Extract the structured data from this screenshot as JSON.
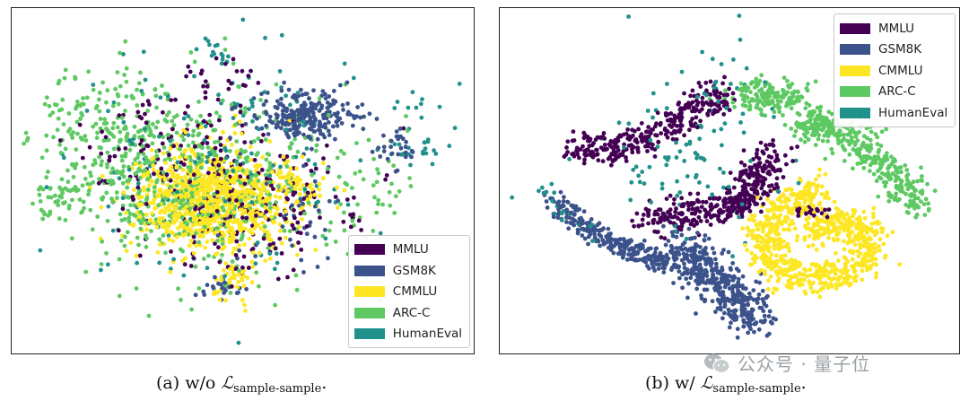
{
  "colors": {
    "MMLU": "#440154",
    "GSM8K": "#3b528b",
    "CMMLU": "#fde725",
    "ARC-C": "#5ec962",
    "HumanEval": "#21918c"
  },
  "chart_data": [
    {
      "type": "scatter",
      "title": "",
      "xlabel": "",
      "ylabel": "",
      "caption": {
        "prefix": "(a) w/o ",
        "symbol": "ℒ",
        "subscript": "sample-sample",
        "suffix": "."
      },
      "legend_position": "bottom-right",
      "xlim": [
        0,
        100
      ],
      "ylim": [
        0,
        100
      ],
      "series": [
        {
          "name": "MMLU",
          "spread": 1.0,
          "clusters": [
            {
              "x": 48,
              "y": 55,
              "rx": 26,
              "ry": 22,
              "n": 220
            },
            {
              "x": 30,
              "y": 40,
              "rx": 18,
              "ry": 20,
              "n": 70
            },
            {
              "x": 45,
              "y": 20,
              "rx": 10,
              "ry": 6,
              "n": 25
            }
          ]
        },
        {
          "name": "GSM8K",
          "spread": 1.0,
          "clusters": [
            {
              "x": 64,
              "y": 30,
              "rx": 11,
              "ry": 8,
              "n": 260
            },
            {
              "x": 83,
              "y": 40,
              "rx": 5,
              "ry": 6,
              "n": 30
            },
            {
              "x": 60,
              "y": 60,
              "rx": 18,
              "ry": 16,
              "n": 40
            },
            {
              "x": 45,
              "y": 82,
              "rx": 5,
              "ry": 3,
              "n": 20
            }
          ]
        },
        {
          "name": "CMMLU",
          "spread": 1.0,
          "clusters": [
            {
              "x": 43,
              "y": 56,
              "rx": 17,
              "ry": 16,
              "n": 900
            },
            {
              "x": 47,
              "y": 80,
              "rx": 5,
              "ry": 6,
              "n": 40
            },
            {
              "x": 60,
              "y": 52,
              "rx": 8,
              "ry": 8,
              "n": 60
            }
          ]
        },
        {
          "name": "ARC-C",
          "spread": 1.0,
          "clusters": [
            {
              "x": 36,
              "y": 50,
              "rx": 30,
              "ry": 26,
              "n": 600
            },
            {
              "x": 20,
              "y": 30,
              "rx": 16,
              "ry": 16,
              "n": 120
            },
            {
              "x": 8,
              "y": 55,
              "rx": 6,
              "ry": 6,
              "n": 40
            },
            {
              "x": 78,
              "y": 55,
              "rx": 10,
              "ry": 20,
              "n": 50
            }
          ]
        },
        {
          "name": "HumanEval",
          "spread": 1.0,
          "clusters": [
            {
              "x": 45,
              "y": 45,
              "rx": 38,
              "ry": 38,
              "n": 160
            },
            {
              "x": 90,
              "y": 35,
              "rx": 8,
              "ry": 12,
              "n": 30
            },
            {
              "x": 44,
              "y": 10,
              "rx": 3,
              "ry": 4,
              "n": 15
            }
          ]
        }
      ]
    },
    {
      "type": "scatter",
      "title": "",
      "xlabel": "",
      "ylabel": "",
      "caption": {
        "prefix": "(b) w/ ",
        "symbol": "ℒ",
        "subscript": "sample-sample",
        "suffix": "."
      },
      "legend_position": "top-right",
      "xlim": [
        0,
        100
      ],
      "ylim": [
        0,
        100
      ],
      "series": [
        {
          "name": "MMLU",
          "paths": [
            {
              "pts": [
                [
                  15,
                  40
                ],
                [
                  25,
                  40
                ],
                [
                  35,
                  34
                ],
                [
                  42,
                  29
                ],
                [
                  48,
                  23
                ]
              ],
              "w": 4.5,
              "n": 320
            },
            {
              "pts": [
                [
                  32,
                  62
                ],
                [
                  42,
                  60
                ],
                [
                  52,
                  56
                ],
                [
                  57,
                  50
                ],
                [
                  59,
                  41
                ]
              ],
              "w": 5.0,
              "n": 380
            },
            {
              "pts": [
                [
                  64,
                  58
                ],
                [
                  72,
                  60
                ]
              ],
              "w": 1.5,
              "n": 25
            }
          ]
        },
        {
          "name": "GSM8K",
          "paths": [
            {
              "pts": [
                [
                  10,
                  55
                ],
                [
                  16,
                  63
                ],
                [
                  23,
                  68
                ],
                [
                  30,
                  72
                ],
                [
                  36,
                  75
                ]
              ],
              "w": 3.0,
              "n": 260
            },
            {
              "pts": [
                [
                  38,
                  69
                ],
                [
                  44,
                  76
                ],
                [
                  50,
                  84
                ],
                [
                  56,
                  92
                ]
              ],
              "w": 6.5,
              "n": 420
            }
          ]
        },
        {
          "name": "CMMLU",
          "paths": [
            {
              "pts": [
                [
                  70,
                  52
                ],
                [
                  63,
                  57
                ],
                [
                  58,
                  64
                ],
                [
                  58,
                  72
                ],
                [
                  64,
                  78
                ],
                [
                  72,
                  79
                ],
                [
                  80,
                  74
                ],
                [
                  80,
                  64
                ],
                [
                  74,
                  62
                ],
                [
                  68,
                  66
                ]
              ],
              "w": 5.0,
              "n": 800
            }
          ]
        },
        {
          "name": "ARC-C",
          "paths": [
            {
              "pts": [
                [
                  53,
                  25
                ],
                [
                  58,
                  24
                ],
                [
                  65,
                  25
                ]
              ],
              "w": 5.0,
              "n": 160
            },
            {
              "pts": [
                [
                  66,
                  35
                ],
                [
                  70,
                  31
                ],
                [
                  76,
                  35
                ],
                [
                  82,
                  42
                ],
                [
                  88,
                  50
                ],
                [
                  93,
                  58
                ]
              ],
              "w": 4.5,
              "n": 380
            }
          ]
        },
        {
          "name": "HumanEval",
          "paths": [
            {
              "pts": [
                [
                  45,
                  12
                ],
                [
                  48,
                  25
                ],
                [
                  40,
                  40
                ],
                [
                  30,
                  50
                ],
                [
                  42,
                  50
                ],
                [
                  55,
                  65
                ]
              ],
              "w": 16,
              "n": 110
            },
            {
              "pts": [
                [
                  8,
                  52
                ],
                [
                  12,
                  60
                ],
                [
                  18,
                  66
                ]
              ],
              "w": 4,
              "n": 20
            }
          ]
        }
      ]
    }
  ],
  "legend": {
    "items": [
      "MMLU",
      "GSM8K",
      "CMMLU",
      "ARC-C",
      "HumanEval"
    ]
  },
  "watermark": {
    "text": "公众号 · 量子位",
    "icon": "wechat-icon"
  }
}
